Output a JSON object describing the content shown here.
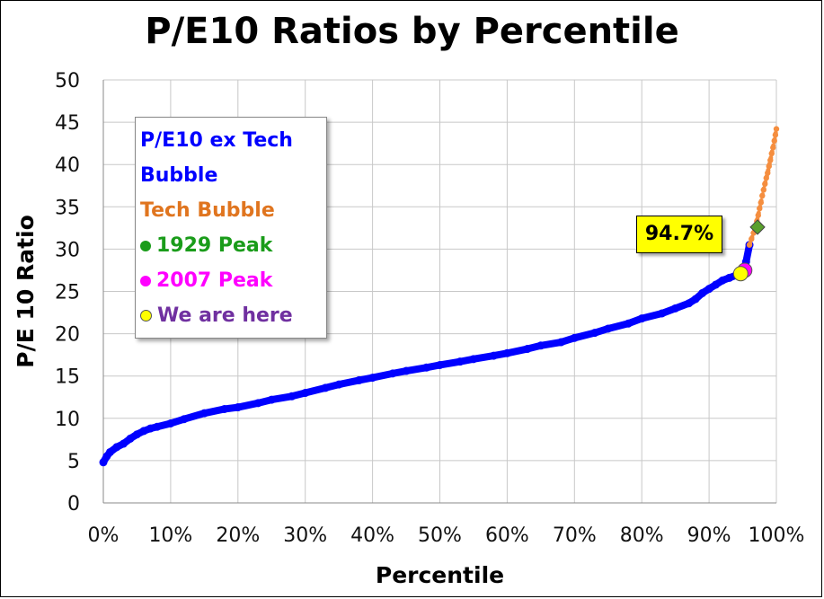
{
  "chart_data": {
    "type": "scatter",
    "title": "P/E10 Ratios by Percentile",
    "xlabel": "Percentile",
    "ylabel": "P/E 10 Ratio",
    "xlim": [
      0,
      100
    ],
    "ylim": [
      0,
      50
    ],
    "x_ticks": [
      0,
      10,
      20,
      30,
      40,
      50,
      60,
      70,
      80,
      90,
      100
    ],
    "x_tick_labels": [
      "0%",
      "10%",
      "20%",
      "30%",
      "40%",
      "50%",
      "60%",
      "70%",
      "80%",
      "90%",
      "100%"
    ],
    "y_ticks": [
      0,
      5,
      10,
      15,
      20,
      25,
      30,
      35,
      40,
      45,
      50
    ],
    "y_tick_labels": [
      "0",
      "5",
      "10",
      "15",
      "20",
      "25",
      "30",
      "35",
      "40",
      "45",
      "50"
    ],
    "grid": true,
    "series": [
      {
        "name": "P/E10 ex Tech Bubble",
        "color": "#0000ff",
        "x": [
          0,
          0.5,
          1,
          2,
          3,
          4,
          5,
          6,
          7,
          8,
          10,
          12,
          15,
          18,
          20,
          23,
          25,
          28,
          30,
          33,
          35,
          38,
          40,
          43,
          45,
          48,
          50,
          53,
          55,
          58,
          60,
          63,
          65,
          68,
          70,
          73,
          75,
          78,
          80,
          83,
          85,
          87,
          88,
          89,
          90,
          91,
          92,
          93,
          94,
          95,
          95.5,
          96
        ],
        "values": [
          4.8,
          5.5,
          6.0,
          6.6,
          7.0,
          7.6,
          8.1,
          8.5,
          8.8,
          9.0,
          9.4,
          9.9,
          10.6,
          11.1,
          11.3,
          11.8,
          12.2,
          12.6,
          13.0,
          13.6,
          14.0,
          14.5,
          14.8,
          15.3,
          15.6,
          16.0,
          16.3,
          16.7,
          17.0,
          17.4,
          17.7,
          18.2,
          18.6,
          19.0,
          19.5,
          20.1,
          20.6,
          21.2,
          21.8,
          22.4,
          23.0,
          23.6,
          24.1,
          24.8,
          25.3,
          25.8,
          26.3,
          26.6,
          26.9,
          27.2,
          28.5,
          30.5
        ]
      },
      {
        "name": "Tech Bubble",
        "color": "#f58e3f",
        "x": [
          96,
          96.3,
          96.6,
          96.9,
          97.1,
          97.3,
          97.5,
          97.7,
          97.9,
          98.1,
          98.3,
          98.5,
          98.7,
          98.9,
          99.1,
          99.3,
          99.5,
          99.7,
          99.85,
          100
        ],
        "values": [
          30.5,
          31.2,
          31.9,
          32.6,
          33.3,
          34.0,
          34.8,
          35.5,
          36.3,
          37.0,
          37.7,
          38.4,
          39.0,
          39.8,
          40.5,
          41.3,
          42.0,
          42.8,
          43.5,
          44.2
        ]
      }
    ],
    "markers": [
      {
        "name": "1929 Peak",
        "x": 97.2,
        "y": 32.6,
        "color": "#5aa02c",
        "shape": "diamond"
      },
      {
        "name": "2007 Peak",
        "x": 95.3,
        "y": 27.5,
        "color": "#ff00ff",
        "shape": "circle"
      },
      {
        "name": "We are here",
        "x": 94.7,
        "y": 27.1,
        "color": "#ffff00",
        "shape": "circle"
      }
    ],
    "legend": {
      "placement": "top-left",
      "entries": [
        {
          "label_line1": "P/E10 ex Tech",
          "label_line2": "Bubble",
          "color": "#0000ff"
        },
        {
          "label": "Tech Bubble",
          "color": "#e0751f"
        },
        {
          "label": "1929 Peak",
          "color": "#1a9c1a"
        },
        {
          "label": "2007 Peak",
          "color": "#ff00ff"
        },
        {
          "label": "We are here",
          "color": "#7030a0"
        }
      ]
    },
    "annotation": {
      "text": "94.7%",
      "background": "#ffff00"
    }
  }
}
